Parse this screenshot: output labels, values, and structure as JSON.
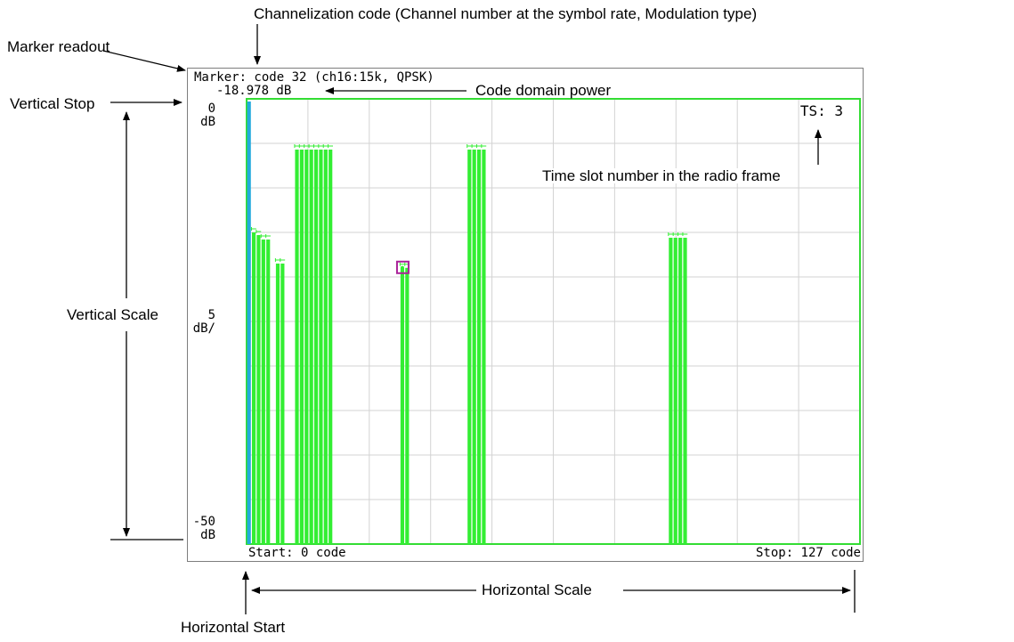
{
  "callouts": {
    "channelization_code": "Channelization code (Channel number at the symbol rate, Modulation type)",
    "marker_readout": "Marker readout",
    "vertical_stop": "Vertical Stop",
    "vertical_scale": "Vertical Scale",
    "code_domain_power": "Code domain power",
    "time_slot_number": "Time slot number in the radio frame",
    "horizontal_scale": "Horizontal Scale",
    "horizontal_start": "Horizontal Start"
  },
  "display": {
    "marker_line": "Marker: code 32 (ch16:15k, QPSK)",
    "marker_value": "-18.978 dB",
    "ts_label": "TS: 3",
    "y_top_value": "0",
    "y_top_unit": "dB",
    "y_scale_value": "5",
    "y_scale_unit": "dB/",
    "y_bottom_value": "-50",
    "y_bottom_unit": "dB",
    "start_label": "Start: 0 code",
    "stop_label": "Stop: 127 code"
  },
  "colors": {
    "bar": "#33ee33",
    "grid_border": "#33dd33",
    "grid_line": "#d3d3d3",
    "marker_bar": "#22aadd",
    "marker_box": "#aa2299"
  },
  "chart_data": {
    "type": "bar",
    "xlim": [
      0,
      127
    ],
    "ylim": [
      -50,
      0
    ],
    "xlabel": "code",
    "ylabel": "dB",
    "marker_code": 32,
    "marker_value": -18.978,
    "bars": [
      {
        "code": 0,
        "value": -0.3,
        "color": "marker"
      },
      {
        "code": 1,
        "value": -15
      },
      {
        "code": 2,
        "value": -15.3
      },
      {
        "code": 3,
        "value": -15.8
      },
      {
        "code": 4,
        "value": -15.8
      },
      {
        "code": 6,
        "value": -18.5
      },
      {
        "code": 7,
        "value": -18.5
      },
      {
        "code": 10,
        "value": -5.7
      },
      {
        "code": 11,
        "value": -5.7
      },
      {
        "code": 12,
        "value": -5.7
      },
      {
        "code": 13,
        "value": -5.7
      },
      {
        "code": 14,
        "value": -5.7
      },
      {
        "code": 15,
        "value": -5.7
      },
      {
        "code": 16,
        "value": -5.7
      },
      {
        "code": 17,
        "value": -5.7
      },
      {
        "code": 32,
        "value": -18.978
      },
      {
        "code": 33,
        "value": -18.978
      },
      {
        "code": 46,
        "value": -5.7
      },
      {
        "code": 47,
        "value": -5.7
      },
      {
        "code": 48,
        "value": -5.7
      },
      {
        "code": 49,
        "value": -5.7
      },
      {
        "code": 88,
        "value": -15.6
      },
      {
        "code": 89,
        "value": -15.6
      },
      {
        "code": 90,
        "value": -15.6
      },
      {
        "code": 91,
        "value": -15.6
      }
    ]
  }
}
